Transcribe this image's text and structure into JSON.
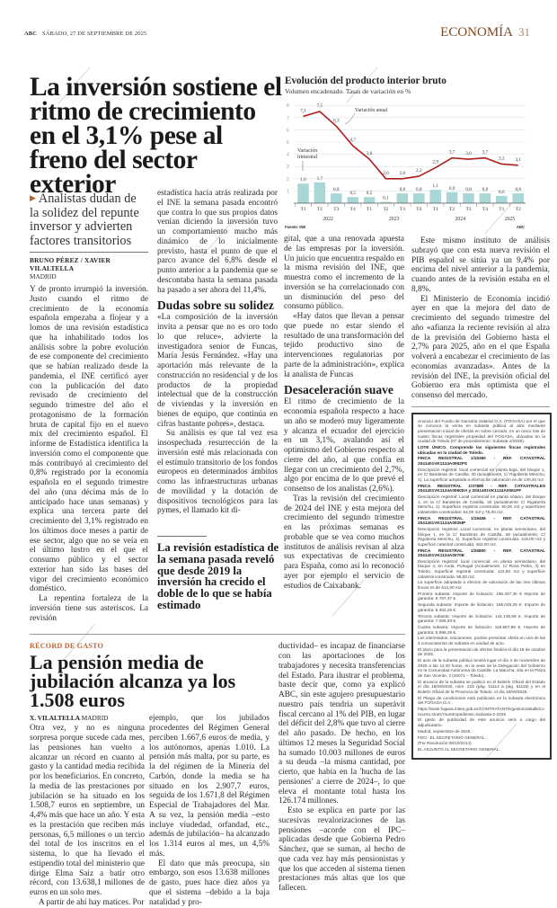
{
  "header": {
    "brand": "ABC",
    "date": "SÁBADO, 27 DE SEPTIEMBRE DE 2025",
    "section": "ECONOMÍA",
    "page": "31"
  },
  "article1": {
    "headline": "La inversión sostiene el ritmo de crecimiento en el 3,1% pese al freno del sector exterior",
    "subhead": "Analistas dudan de la solidez del repunte inversor y advierten factores transitorios",
    "byline": "BRUNO PÉREZ / XAVIER VILALTELLA",
    "place": "MADRID",
    "col1": [
      "Y de pronto irrumpió la inversión. Justo cuando el ritmo de crecimiento de la economía española empezaba a flojear y a lomos de una revisión estadística que ha inhabilitado todos los análisis sobre la pobre evolución de ese componente del crecimiento que se habían realizado desde la pandemia, el INE certificó ayer con la publicación del dato revisado de crecimiento del segundo trimestre del año el protagonismo de la formación bruta de capital fijo en el nuevo mix del crecimiento español. El informe de Estadística identifica la inversión como el componente que más contribuyó al crecimiento del 0,8% registrado por la economía española en el segundo trimestre del año (una décima más de lo anticipado hace unas semanas) y explica una tercera parte del crecimiento del 3,1% registrado en los últimos doce meses a partir de ese sector, algo que no se veía en el último lustro en el que el consumo público y el sector exterior han sido las bases del vigor del crecimiento económico doméstico.",
      "La repentina fortaleza de la inversión tiene sus asteriscos. La revisión"
    ],
    "col2a": "estadística hacia atrás realizada por el INE la semana pasada encontró que contra lo que sus propios datos venían diciendo la inversión tuvo un comportamiento mucho más dinámico de lo inicialmente previsto, hasta el punto de que el parco avance del 6,8% desde el punto anterior a la pandemia que se descontaba hasta la semana pasada ha pasado a ser ahora del 11,4%.",
    "subhead_dudas": "Dudas sobre su solidez",
    "col2b": [
      "«La composición de la inversión invita a pensar que no es oro todo lo que reluce», advierte la investigadora senior de Funcas, María Jesús Fernández. «Hay una aportación más relevante de la construcción no residencial y de los productos de la propiedad intelectual que de la construcción de viviendas y la inversión en bienes de equipo, que continúa en cifras bastante pobres», destaca.",
      "Su análisis es que tal vez esa insospechada resurrección de la inversión esté más relacionada con el estímulo transitorio de los fondos europeos en determinados ámbitos como las infraestructuras urbanas de movilidad y la dotación de dispositivos tecnológicos para las pymes, el llamado kit di-"
    ],
    "pullquote": "La revisión estadística de la semana pasada reveló que desde 2019 la inversión ha crecido el doble de lo que se había estimado",
    "col3a": [
      "gital, que a una renovada apuesta de las empresas por la inversión. Un juicio que encuentra respaldo en la misma revisión del INE, que muestra como el incremento de la inversión se ha correlacionado con un disminución del peso del consumo público.",
      "«Hay datos que llevan a pensar que puede no estar siendo el resultado de una transformación del tejido productivo sino de intervenciones regulatorias por parte de la administración», explica la analista de Funcas"
    ],
    "subhead_desac": "Desaceleración suave",
    "col3b": [
      "El ritmo de crecimiento de la economía española respecto a hace un año se moderó muy ligeramente y alcanza el ecuador del ejercicio en un 3,1%, avalando así el optimismo del Gobierno respecto al cierre del año, al que confía en llegar con un crecimiento del 2,7%, algo por encima de lo que prevé el consenso de los analistas (2,6%).",
      "Tras la revisión del crecimiento de 2024 del INE y esta mejora del crecimiento del segundo trimestre en las próximas semanas es probable que se vea como muchos institutos de análisis revisan al alza sus expectativas de crecimiento para España, como así lo reconoció ayer por ejemplo el servicio de estudios de Caixabank."
    ],
    "col4": [
      "Este mismo instituto de análisis subrayó que con esta nueva revisión el PIB español se sitúa ya un 9,4% por encima del nivel anterior a la pandemia, cuando antes de la revisión estaba en el 8,8%.",
      "El Ministerio de Economía incidió ayer en que la mejora del dato de crecimiento del segundo trimestre del año «afianza la reciente revisión al alza de la previsión del Gobierno hasta el 2,7% para 2025, año en el que España volverá a encabezar el crecimiento de las economías avanzadas». Antes de la revisión del INE, la previsión oficial del Gobierno era más optimista que el consenso del mercado."
    ]
  },
  "chart_data": {
    "type": "bar+line",
    "title": "Evolución del producto interior bruto",
    "subtitle": "Volumen encadenado. Tasas de variación en %",
    "categories": [
      "T1",
      "T2",
      "T3",
      "T4",
      "T1",
      "T2",
      "T3",
      "T4",
      "T1",
      "T2",
      "T3",
      "T4",
      "T1",
      "T2"
    ],
    "years": [
      {
        "label": "2022",
        "span": 4
      },
      {
        "label": "2023",
        "span": 4
      },
      {
        "label": "2024",
        "span": 4
      },
      {
        "label": "2025",
        "span": 2
      }
    ],
    "series": [
      {
        "name": "Variación anual",
        "type": "line",
        "color": "#b01c1c",
        "values": [
          7.1,
          7.5,
          6.3,
          4.7,
          3.6,
          2.0,
          2.0,
          2.2,
          2.9,
          3.7,
          3.6,
          3.7,
          3.2,
          3.1
        ]
      },
      {
        "name": "Variación trimestral",
        "type": "bar",
        "color": "#a9d6d6",
        "values": [
          1.6,
          1.7,
          0.8,
          0.5,
          0.5,
          0.1,
          0.8,
          0.8,
          1.1,
          0.9,
          0.8,
          0.8,
          0.6,
          0.8
        ]
      }
    ],
    "yticks": [
      1,
      2,
      3,
      4,
      5,
      6,
      7,
      8
    ],
    "ylim": [
      0,
      8
    ],
    "source": "Fuente: INE",
    "credit": "ABC"
  },
  "article2": {
    "tag": "RÉCORD DE GASTO",
    "headline": "La pensión media de jubilación alcanza ya los 1.508 euros",
    "byline": "X. VILALTELLA",
    "place": "MADRID",
    "col1": [
      "Otra vez, y no es ninguna sorpresa porque sucede cada mes, las pensiones han vuelto a alcanzar un récord en cuanto al gasto y la cantidad media recibida por los beneficiarios. En concreto, la media de las prestaciones por jubilación se ha situado en los 1.508,7 euros en septiembre, un 4,4% más que hace un año. Y esta es la prestación que reciben más personas, 6,5 millones o un tercio del total de los inscritos en el sistema, lo que ha llevado el estipendio total del ministerio que dirige Elma Saiz a batir otro récord, con 13.638,1 millones de euros en un solo mes.",
      "A partir de ahí hay matices. Por"
    ],
    "col2": [
      "ejemplo, que los jubilados procedentes del Régimen General perciben 1.667,6 euros de media, y los autónomos, apenas 1.010. La pensión más malta, por su parte, es la del régimen de la Minería del Carbón, donde la media se ha situado en los 2.907,7 euros, seguida de los 1.671,8 del Régimen Especial de Trabajadores del Mar. A su vez, la pensión media –esto incluye viudedad, orfandad, etc., además de jubilación– ha alcanzado los 1.314 euros al mes, un 4,5% más.",
      "El dato que más preocupa, sin embargo, son esos 13.638 millones de gasto, pues hace diez años ya que el sistema –debido a la baja natalidad y pro-"
    ],
    "col3": [
      "ductividad– es incapaz de financiarse con las aportaciones de los trabajadores y necesita transferencias del Estado. Para ilustrar el problema, baste decir que, como ya explicó ABC, sin este agujero presupuestario nuestro país tendría un superávit fiscal cercano al 1% del PIB, en lugar del déficit del 2,8% que tuvo al cierre del año pasado. De hecho, en los últimos 12 meses la Seguridad Social ha sumado 10.003 millones de euros a su deuda –la misma cantidad, por cierto, que había en la 'hucha de las pensiones' a cierre de 2024–, lo que eleva el montante total hasta los 126.174 millones.",
      "Esto se explica en parte por las sucesivas revalorizaciones de las pensiones –acorde con el IPC– aplicadas desde que Gobierna Pedro Sánchez, que se suman, al hecho de que cada vez hay más pensionistas y que los que acceden al sistema tienen prestaciones más altas que los que fallecen."
    ]
  },
  "legal_notice": {
    "paragraphs": [
      "Anuncio del Fondo de Garantía Salarial O.A. (FOGASA) por el que se convoca la venta en subasta pública al alza mediante presentación inicial de ofertas en sobre cerrado, en un único lote de cuatro fincas registrales propiedad del FOGASA, ubicadas en la ciudad de Toledo (Nº de procedimiento: Subasta-2/2025).",
      "LOTE ÚNICO. Comprende las siguientes fincas registrales ubicadas en la ciudad de Toledo.",
      "FINCA REGISTRAL 1/15360 - REF. CATASTRAL 2041401VK1124A0062PS",
      "Descripción registral: local comercial en planta baja, del bloque 1, en C/ Banderas de Castilla, 30 (actualmente, C/ Rigoberta Menchu, 1). La superficie adoptada a efectos de valoración es de 130,40 m2.",
      "FINCA REGISTRAL 1/37890 - REF. CATASTRALES 2041401VK1124A0060DA y 2041401VK1124A0061PF",
      "Descripción registral: Local comercial en planta sótano, del bloque 1, en la C/ Banderas de Castilla, 30 (actualmente C/ Rigoberta Menchu, 1). Superficie registral construida: 90,00 m2 y superficies catastrales construidas: 64,00 m2 y 75,00 m2.",
      "FINCA REGISTRAL 1/19406 - REF. CATASTRAL 2041401VK1124A0025IP",
      "Descripción registral: Local comercial, en planta semisótano, del bloque 1, en la C/ Banderas de Castilla, 28 (actualmente, C/ Rigoberta Menchu, 3). Superficie registral construida: 415,00 m2 y superficie catastral construida: 482,00 m2.",
      "FINCA REGISTRAL 1/26800 - REF. CATASTRAL 2041401VK1124A0070E",
      "Descripción registral: local comercial, en planta semisótano, del bloque 4, en Avda. Portugal (Actualmente, C/ Rosa Parks, 3) en Toledo. Superficie registral construida: 122,50 m2 y superficie catastral construida: 88,00 m2.",
      "La superficie adoptada a efectos de valoración de las tres últimas fincas es de 612,00 m2.",
      "Primera subasta: Importe de licitación: 195.347,35 € Importe de garantía: 9.767,37 €.",
      "Segunda subasta: Importe de licitación: 166.045,25 €. Importe de garantía: 8.302,26 €.",
      "Tercera subasta: Importe de licitación: 141.138,69 €. Importe de garantía: 7.056,93 €.",
      "Cuarta subasta: Importe de licitación: 119.967,89 €. Importe de garantía: 5.998,39 €.",
      "Los interesados, únicamente, podrán presentar oferta en una de las 4 convocatorias de subasta en unidad de acto.",
      "El plazo para la presentación de ofertas finaliza el día 18 de octubre de 2025.",
      "El acto de la subasta pública tendrá lugar el día 4 de noviembre de 2025 a las 11:30 horas, en la sede de la Delegación del Gobierno en la Comunidad Autónoma de Castilla- La Mancha, sita en la Plaza de San Vicente, 3 (45071 – Toledo).",
      "El anuncio de la subasta se publicó en el Boletín Oficial del Estado el día 18/09/2025, núm. 218 (pág. 51114 a pág. 51118) y en el Boletín Oficial de la Provincia de Toledo, el día 18/09/2025.",
      "El Pliego de condiciones está publicado en la subasta electrónica del FOGASA O.A.:",
      "https://sede.fogasa.mites.gob.es/CONTRATANTE/gestion/detalleConcurso.struts?numExpediente=Subasta-2-2025",
      "El gasto de publicidad de este anuncio será a cargo del adjudicatario.",
      "Madrid, septiembre de 2025.",
      "FDO.: EL SECRETARIO GENERAL.",
      "(Por Resolución 08/10/2014)",
      "EL ADJUNTO AL SECRETARIO GENERAL."
    ]
  },
  "watermark": "ABC"
}
